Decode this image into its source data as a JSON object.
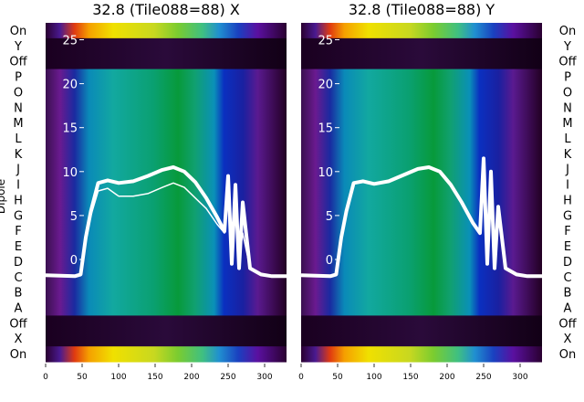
{
  "chart_data": [
    {
      "type": "heatmap",
      "title": "32.8 (Tile088=88) X",
      "ylabel": "Dipole",
      "xlim": [
        0,
        330
      ],
      "x_ticks": [
        0,
        50,
        100,
        150,
        200,
        250,
        300
      ],
      "ylim_inner": [
        -3,
        26.5
      ],
      "inner_y_ticks": [
        0,
        5,
        10,
        15,
        20,
        25
      ],
      "dipole_labels": [
        "On",
        "Y",
        "Off",
        "P",
        "O",
        "N",
        "M",
        "L",
        "K",
        "J",
        "I",
        "H",
        "G",
        "F",
        "E",
        "D",
        "C",
        "B",
        "A",
        "Off",
        "X",
        "On"
      ],
      "series": [
        {
          "name": "",
          "x": [
            0,
            40,
            48,
            55,
            62,
            72,
            85,
            100,
            120,
            140,
            160,
            175,
            190,
            205,
            220,
            235,
            245,
            250,
            255,
            260,
            265,
            270,
            280,
            295,
            310,
            330
          ],
          "y": [
            -1.8,
            -1.9,
            -1.7,
            2.5,
            5.5,
            8.7,
            9.0,
            8.7,
            8.9,
            9.5,
            10.2,
            10.5,
            10.0,
            8.8,
            7.0,
            4.8,
            3.2,
            9.5,
            -0.5,
            8.5,
            -1.0,
            6.5,
            -1.0,
            -1.7,
            -1.9,
            -1.9
          ]
        },
        {
          "name": "",
          "x": [
            0,
            40,
            48,
            55,
            62,
            72,
            85,
            100,
            120,
            140,
            160,
            175,
            190,
            205,
            220,
            235,
            245,
            250,
            255,
            260,
            265,
            270,
            280,
            295,
            310,
            330
          ],
          "y": [
            -1.8,
            -1.9,
            -1.7,
            2.0,
            5.0,
            7.8,
            8.1,
            7.2,
            7.2,
            7.5,
            8.2,
            8.7,
            8.2,
            7.0,
            5.8,
            4.0,
            3.0,
            7.0,
            0.5,
            5.5,
            0.0,
            3.0,
            -1.0,
            -1.7,
            -1.9,
            -1.9
          ]
        }
      ]
    },
    {
      "type": "heatmap",
      "title": "32.8 (Tile088=88) Y",
      "xlim": [
        0,
        330
      ],
      "x_ticks": [
        0,
        50,
        100,
        150,
        200,
        250,
        300
      ],
      "ylim_inner": [
        -3,
        26.5
      ],
      "inner_y_ticks": [
        0,
        5,
        10,
        15,
        20,
        25
      ],
      "dipole_labels": [
        "On",
        "Y",
        "Off",
        "P",
        "O",
        "N",
        "M",
        "L",
        "K",
        "J",
        "I",
        "H",
        "G",
        "F",
        "E",
        "D",
        "C",
        "B",
        "A",
        "Off",
        "X",
        "On"
      ],
      "series": [
        {
          "name": "",
          "x": [
            0,
            40,
            48,
            55,
            62,
            72,
            85,
            100,
            120,
            140,
            160,
            175,
            190,
            205,
            220,
            235,
            245,
            250,
            255,
            260,
            265,
            270,
            280,
            295,
            310,
            330
          ],
          "y": [
            -1.8,
            -1.9,
            -1.7,
            2.5,
            5.5,
            8.7,
            8.9,
            8.6,
            8.9,
            9.6,
            10.3,
            10.5,
            10.0,
            8.5,
            6.5,
            4.2,
            3.0,
            11.5,
            -0.5,
            10.0,
            -1.0,
            6.0,
            -1.0,
            -1.7,
            -1.9,
            -1.9
          ]
        }
      ]
    }
  ]
}
